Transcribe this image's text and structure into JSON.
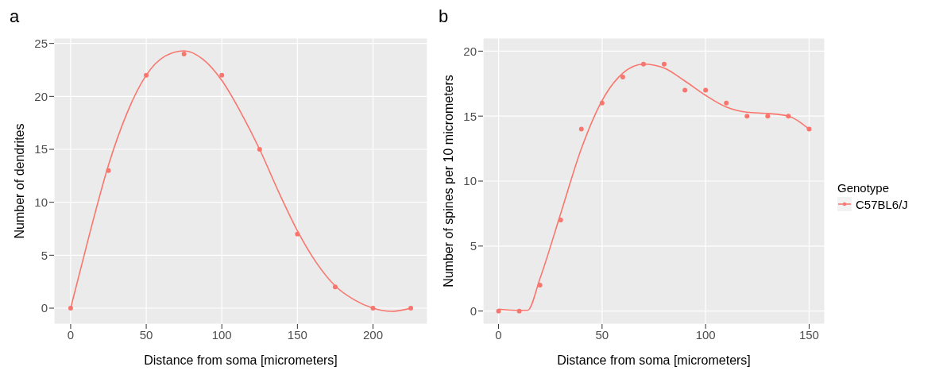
{
  "chart_data": [
    {
      "type": "scatter",
      "title": "a",
      "xlabel": "Distance from soma [micrometers]",
      "ylabel": "Number of dendrites",
      "xlim": [
        -11,
        236
      ],
      "ylim": [
        -1.5,
        25.5
      ],
      "xticks": [
        0,
        50,
        100,
        150,
        200
      ],
      "yticks": [
        0,
        5,
        10,
        15,
        20,
        25
      ],
      "grid": true,
      "legend": false,
      "series": [
        {
          "color": "#f8766d",
          "marker": "circle",
          "x": [
            0,
            25,
            50,
            75,
            100,
            125,
            150,
            175,
            200,
            225
          ],
          "values": [
            0,
            13,
            22,
            24,
            22,
            15,
            7,
            2,
            0,
            0
          ]
        },
        {
          "type": "line",
          "marker": "none",
          "color": "#f8766d",
          "x": [
            0,
            12.5,
            25,
            37.5,
            50,
            62.5,
            75,
            87.5,
            100,
            112.5,
            125,
            137.5,
            150,
            162.5,
            175,
            187.5,
            200,
            212.5,
            225
          ],
          "values": [
            0,
            7,
            13.5,
            18.5,
            22,
            23.8,
            24.3,
            23.5,
            21.5,
            18.5,
            15,
            11,
            7.3,
            4.3,
            2.1,
            0.8,
            0,
            -0.3,
            0
          ]
        }
      ]
    },
    {
      "type": "scatter",
      "title": "b",
      "xlabel": "Distance from soma [micrometers]",
      "ylabel": "Number of spines per 10 micrometers",
      "legend_title": "Genotype",
      "xlim": [
        -7.5,
        157.5
      ],
      "ylim": [
        -1,
        21
      ],
      "xticks": [
        0,
        50,
        100,
        150
      ],
      "yticks": [
        0,
        5,
        10,
        15,
        20
      ],
      "grid": true,
      "legend": "right",
      "series": [
        {
          "name": "C57BL6/J",
          "color": "#f8766d",
          "marker": "circle",
          "x": [
            0,
            10,
            20,
            30,
            40,
            50,
            60,
            70,
            80,
            90,
            100,
            110,
            120,
            130,
            140,
            150
          ],
          "values": [
            0,
            0,
            2,
            7,
            14,
            16,
            18,
            19,
            19,
            17,
            17,
            16,
            15,
            15,
            15,
            14
          ]
        },
        {
          "type": "line",
          "marker": "none",
          "color": "#f8766d",
          "x": [
            0,
            10,
            14,
            20,
            30,
            40,
            50,
            60,
            70,
            80,
            90,
            100,
            110,
            120,
            130,
            140,
            150
          ],
          "values": [
            0.15,
            0.05,
            0.05,
            2.5,
            7.5,
            12.5,
            16.2,
            18.3,
            19,
            18.7,
            17.7,
            16.6,
            15.7,
            15.3,
            15.2,
            15,
            14
          ]
        }
      ]
    }
  ]
}
